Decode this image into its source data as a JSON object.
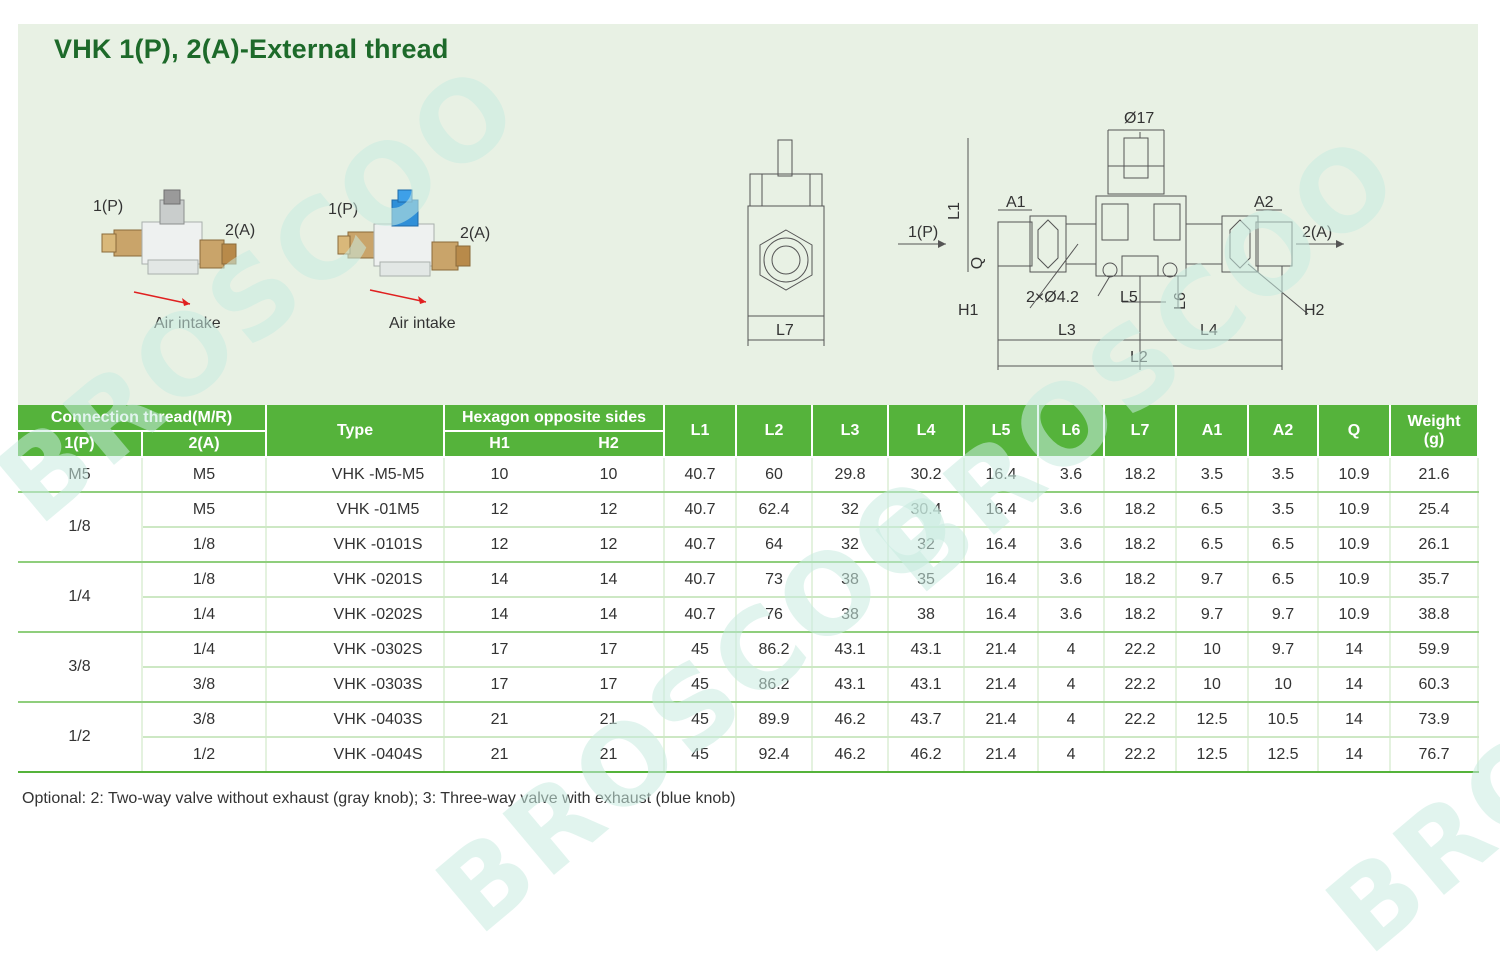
{
  "title": "VHK 1(P), 2(A)-External thread",
  "products": [
    {
      "port1": "1(P)",
      "port2": "2(A)",
      "intake": "Air intake",
      "knob_color": "#9a9a9a"
    },
    {
      "port1": "1(P)",
      "port2": "2(A)",
      "intake": "Air intake",
      "knob_color": "#2f8fd8"
    }
  ],
  "drawing_labels": {
    "phi17": "Ø17",
    "L1": "L1",
    "A1": "A1",
    "A2": "A2",
    "Q": "Q",
    "H1": "H1",
    "H2": "H2",
    "hole": "2×Ø4.2",
    "L5": "L5",
    "L6": "L6",
    "L3": "L3",
    "L4": "L4",
    "L2": "L2",
    "L7": "L7",
    "port1": "1(P)",
    "port2": "2(A)"
  },
  "watermark_text": "BROSCOO",
  "table": {
    "headers": {
      "connection": "Connection thread(M/R)",
      "p1": "1(P)",
      "a2": "2(A)",
      "type": "Type",
      "hex": "Hexagon  opposite  sides",
      "h1": "H1",
      "h2": "H2",
      "L1": "L1",
      "L2": "L2",
      "L3": "L3",
      "L4": "L4",
      "L5": "L5",
      "L6": "L6",
      "L7": "L7",
      "A1": "A1",
      "A2": "A2",
      "Q": "Q",
      "weight": "Weight",
      "weight_unit": "(g)"
    },
    "groups": [
      {
        "p": "M5",
        "rows": [
          {
            "a": "M5",
            "type": "VHK   -M5-M5",
            "h1": "10",
            "h2": "10",
            "L1": "40.7",
            "L2": "60",
            "L3": "29.8",
            "L4": "30.2",
            "L5": "16.4",
            "L6": "3.6",
            "L7": "18.2",
            "A1": "3.5",
            "A2": "3.5",
            "Q": "10.9",
            "W": "21.6"
          }
        ]
      },
      {
        "p": "1/8",
        "rows": [
          {
            "a": "M5",
            "type": "VHK   -01M5",
            "h1": "12",
            "h2": "12",
            "L1": "40.7",
            "L2": "62.4",
            "L3": "32",
            "L4": "30.4",
            "L5": "16.4",
            "L6": "3.6",
            "L7": "18.2",
            "A1": "6.5",
            "A2": "3.5",
            "Q": "10.9",
            "W": "25.4"
          },
          {
            "a": "1/8",
            "type": "VHK   -0101S",
            "h1": "12",
            "h2": "12",
            "L1": "40.7",
            "L2": "64",
            "L3": "32",
            "L4": "32",
            "L5": "16.4",
            "L6": "3.6",
            "L7": "18.2",
            "A1": "6.5",
            "A2": "6.5",
            "Q": "10.9",
            "W": "26.1"
          }
        ]
      },
      {
        "p": "1/4",
        "rows": [
          {
            "a": "1/8",
            "type": "VHK   -0201S",
            "h1": "14",
            "h2": "14",
            "L1": "40.7",
            "L2": "73",
            "L3": "38",
            "L4": "35",
            "L5": "16.4",
            "L6": "3.6",
            "L7": "18.2",
            "A1": "9.7",
            "A2": "6.5",
            "Q": "10.9",
            "W": "35.7"
          },
          {
            "a": "1/4",
            "type": "VHK   -0202S",
            "h1": "14",
            "h2": "14",
            "L1": "40.7",
            "L2": "76",
            "L3": "38",
            "L4": "38",
            "L5": "16.4",
            "L6": "3.6",
            "L7": "18.2",
            "A1": "9.7",
            "A2": "9.7",
            "Q": "10.9",
            "W": "38.8"
          }
        ]
      },
      {
        "p": "3/8",
        "rows": [
          {
            "a": "1/4",
            "type": "VHK   -0302S",
            "h1": "17",
            "h2": "17",
            "L1": "45",
            "L2": "86.2",
            "L3": "43.1",
            "L4": "43.1",
            "L5": "21.4",
            "L6": "4",
            "L7": "22.2",
            "A1": "10",
            "A2": "9.7",
            "Q": "14",
            "W": "59.9"
          },
          {
            "a": "3/8",
            "type": "VHK   -0303S",
            "h1": "17",
            "h2": "17",
            "L1": "45",
            "L2": "86.2",
            "L3": "43.1",
            "L4": "43.1",
            "L5": "21.4",
            "L6": "4",
            "L7": "22.2",
            "A1": "10",
            "A2": "10",
            "Q": "14",
            "W": "60.3"
          }
        ]
      },
      {
        "p": "1/2",
        "rows": [
          {
            "a": "3/8",
            "type": "VHK   -0403S",
            "h1": "21",
            "h2": "21",
            "L1": "45",
            "L2": "89.9",
            "L3": "46.2",
            "L4": "43.7",
            "L5": "21.4",
            "L6": "4",
            "L7": "22.2",
            "A1": "12.5",
            "A2": "10.5",
            "Q": "14",
            "W": "73.9"
          },
          {
            "a": "1/2",
            "type": "VHK   -0404S",
            "h1": "21",
            "h2": "21",
            "L1": "45",
            "L2": "92.4",
            "L3": "46.2",
            "L4": "46.2",
            "L5": "21.4",
            "L6": "4",
            "L7": "22.2",
            "A1": "12.5",
            "A2": "12.5",
            "Q": "14",
            "W": "76.7"
          }
        ]
      }
    ]
  },
  "note": "Optional: 2: Two-way valve without exhaust (gray knob); 3: Three-way valve with exhaust (blue knob)"
}
